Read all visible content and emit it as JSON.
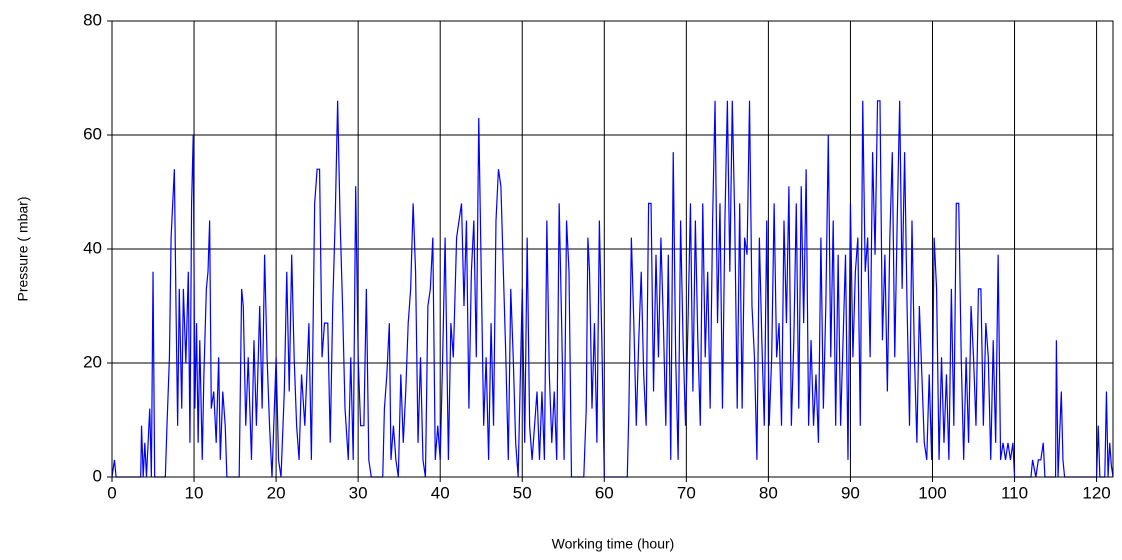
{
  "chart_data": {
    "type": "line",
    "xlabel": "Working time (hour)",
    "ylabel": "Pressure ( mbar)",
    "xlim": [
      0,
      122
    ],
    "ylim": [
      0,
      80
    ],
    "xticks": [
      0,
      10,
      20,
      30,
      40,
      50,
      60,
      70,
      80,
      90,
      100,
      110,
      120
    ],
    "yticks": [
      0,
      20,
      40,
      60,
      80
    ],
    "grid": true,
    "series": [
      {
        "color": "#0000ff",
        "x": [
          0,
          0.3,
          0.5,
          3.5,
          3.6,
          3.8,
          4.0,
          4.2,
          4.6,
          4.8,
          5.0,
          5.2,
          6.5,
          6.7,
          7.0,
          7.2,
          7.4,
          7.6,
          7.8,
          8.0,
          8.2,
          8.5,
          8.7,
          9.0,
          9.3,
          9.5,
          9.7,
          9.9,
          10.1,
          10.3,
          10.5,
          10.7,
          11.0,
          11.2,
          11.5,
          11.7,
          11.9,
          12.1,
          12.4,
          12.7,
          13.0,
          13.2,
          13.5,
          13.8,
          14.0,
          15.5,
          15.8,
          16.0,
          16.3,
          16.6,
          17.0,
          17.3,
          17.6,
          18.0,
          18.3,
          18.6,
          18.9,
          19.2,
          19.5,
          20.0,
          20.3,
          20.6,
          21.0,
          21.3,
          21.6,
          21.9,
          22.2,
          22.5,
          22.8,
          23.1,
          23.5,
          24.0,
          24.3,
          24.7,
          25.0,
          25.3,
          25.6,
          25.9,
          26.3,
          26.6,
          26.9,
          27.2,
          27.5,
          27.8,
          28.1,
          28.4,
          28.8,
          29.1,
          29.4,
          29.7,
          30.0,
          30.3,
          30.7,
          31.0,
          31.3,
          31.6,
          33.0,
          33.2,
          33.5,
          33.8,
          34.0,
          34.3,
          34.6,
          34.9,
          35.2,
          35.5,
          35.8,
          36.1,
          36.4,
          36.7,
          37.0,
          37.3,
          37.6,
          37.9,
          38.2,
          38.5,
          38.8,
          39.1,
          39.4,
          39.7,
          40.0,
          40.3,
          40.6,
          41.0,
          41.3,
          41.6,
          42.0,
          42.3,
          42.6,
          42.9,
          43.2,
          43.5,
          43.8,
          44.1,
          44.4,
          44.7,
          45.0,
          45.3,
          45.6,
          45.9,
          46.2,
          46.5,
          46.8,
          47.1,
          47.4,
          47.7,
          48.0,
          48.3,
          48.6,
          48.9,
          49.2,
          49.5,
          50.0,
          50.3,
          50.6,
          50.9,
          51.2,
          51.5,
          51.8,
          52.1,
          52.4,
          52.7,
          53.0,
          53.3,
          53.6,
          53.9,
          54.2,
          54.5,
          54.8,
          55.1,
          55.4,
          55.7,
          56.0,
          57.5,
          57.8,
          58.0,
          58.2,
          58.5,
          58.8,
          59.1,
          59.4,
          59.7,
          60.0,
          62.8,
          63.0,
          63.3,
          63.6,
          63.9,
          64.2,
          64.5,
          64.8,
          65.1,
          65.4,
          65.7,
          66.0,
          66.3,
          66.6,
          66.9,
          67.2,
          67.5,
          67.8,
          68.1,
          68.4,
          68.7,
          69.0,
          69.3,
          69.6,
          69.9,
          70.2,
          70.5,
          70.8,
          71.1,
          71.4,
          71.7,
          72.0,
          72.3,
          72.6,
          72.9,
          73.2,
          73.5,
          73.8,
          74.1,
          74.4,
          74.7,
          75.0,
          75.3,
          75.6,
          75.9,
          76.2,
          76.5,
          76.8,
          77.1,
          77.4,
          77.7,
          78.0,
          78.3,
          78.6,
          78.9,
          79.2,
          79.5,
          79.8,
          80.1,
          80.4,
          80.7,
          81.0,
          81.3,
          81.6,
          81.9,
          82.2,
          82.5,
          82.8,
          83.1,
          83.4,
          83.7,
          84.0,
          84.3,
          84.6,
          84.9,
          85.2,
          85.5,
          85.8,
          86.1,
          86.4,
          86.7,
          87.0,
          87.3,
          87.6,
          87.9,
          88.2,
          88.5,
          88.8,
          89.1,
          89.4,
          89.7,
          90.0,
          90.3,
          90.6,
          90.9,
          91.2,
          91.5,
          91.8,
          92.1,
          92.4,
          92.7,
          93.0,
          93.3,
          93.6,
          93.9,
          94.2,
          94.5,
          94.8,
          95.1,
          95.4,
          95.7,
          96.0,
          96.3,
          96.6,
          96.9,
          97.2,
          97.5,
          97.8,
          98.1,
          98.4,
          98.7,
          99.0,
          99.3,
          99.6,
          99.9,
          100.2,
          100.5,
          100.8,
          101.1,
          101.4,
          101.7,
          102.0,
          102.3,
          102.6,
          102.9,
          103.2,
          103.5,
          103.8,
          104.1,
          104.4,
          104.7,
          105.0,
          105.3,
          105.6,
          105.9,
          106.2,
          106.5,
          106.8,
          107.1,
          107.4,
          107.7,
          108.0,
          108.3,
          108.6,
          108.9,
          109.2,
          109.5,
          109.8,
          110.0,
          112.0,
          112.2,
          112.6,
          112.9,
          113.2,
          113.5,
          113.7,
          115.0,
          115.1,
          115.3,
          115.7,
          115.9,
          116.1,
          120.0,
          120.2,
          120.4,
          121.0,
          121.2,
          121.4,
          121.6,
          121.8,
          122.0
        ],
        "values": [
          0,
          3,
          0,
          0,
          9,
          0,
          6,
          0,
          12,
          0,
          36,
          0,
          0,
          9,
          21,
          42,
          48,
          54,
          30,
          9,
          33,
          12,
          33,
          20,
          36,
          6,
          48,
          60,
          12,
          27,
          6,
          24,
          3,
          18,
          33,
          36,
          45,
          12,
          15,
          6,
          21,
          3,
          15,
          9,
          0,
          0,
          33,
          30,
          9,
          21,
          3,
          24,
          9,
          30,
          12,
          39,
          21,
          9,
          0,
          21,
          3,
          0,
          15,
          36,
          15,
          39,
          21,
          9,
          3,
          18,
          9,
          27,
          3,
          48,
          54,
          54,
          21,
          27,
          27,
          6,
          30,
          45,
          66,
          45,
          30,
          12,
          3,
          21,
          3,
          51,
          21,
          9,
          9,
          33,
          3,
          0,
          0,
          12,
          18,
          27,
          3,
          9,
          3,
          0,
          18,
          6,
          15,
          27,
          33,
          48,
          36,
          6,
          21,
          3,
          0,
          30,
          33,
          42,
          3,
          9,
          3,
          21,
          42,
          3,
          27,
          21,
          42,
          45,
          48,
          30,
          45,
          12,
          36,
          45,
          21,
          63,
          36,
          9,
          21,
          3,
          27,
          9,
          45,
          54,
          51,
          36,
          21,
          3,
          33,
          21,
          6,
          0,
          33,
          6,
          42,
          9,
          3,
          9,
          15,
          3,
          15,
          3,
          45,
          18,
          6,
          15,
          3,
          48,
          27,
          3,
          45,
          36,
          0,
          0,
          12,
          42,
          36,
          12,
          27,
          6,
          45,
          24,
          0,
          0,
          12,
          42,
          27,
          9,
          24,
          36,
          18,
          9,
          48,
          48,
          15,
          39,
          21,
          42,
          27,
          9,
          39,
          3,
          57,
          21,
          3,
          45,
          24,
          9,
          27,
          48,
          15,
          45,
          24,
          9,
          48,
          21,
          36,
          12,
          45,
          66,
          27,
          48,
          12,
          45,
          66,
          36,
          66,
          45,
          12,
          48,
          12,
          42,
          39,
          66,
          30,
          21,
          3,
          42,
          24,
          9,
          45,
          9,
          21,
          48,
          21,
          27,
          9,
          45,
          27,
          51,
          9,
          24,
          48,
          12,
          51,
          27,
          54,
          9,
          24,
          9,
          18,
          6,
          42,
          12,
          30,
          60,
          21,
          45,
          9,
          39,
          9,
          24,
          39,
          3,
          48,
          21,
          36,
          42,
          9,
          66,
          36,
          42,
          21,
          57,
          39,
          66,
          66,
          24,
          39,
          15,
          42,
          57,
          21,
          45,
          66,
          33,
          57,
          30,
          9,
          45,
          21,
          6,
          30,
          18,
          6,
          3,
          18,
          3,
          42,
          33,
          3,
          21,
          6,
          18,
          3,
          33,
          9,
          48,
          48,
          21,
          3,
          21,
          6,
          30,
          21,
          9,
          33,
          33,
          9,
          27,
          21,
          3,
          24,
          6,
          39,
          3,
          6,
          3,
          6,
          3,
          6,
          0,
          0,
          3,
          0,
          3,
          3,
          6,
          0,
          0,
          24,
          0,
          15,
          3,
          0,
          0,
          9,
          0,
          0,
          15,
          0,
          6,
          2,
          0
        ]
      }
    ]
  }
}
